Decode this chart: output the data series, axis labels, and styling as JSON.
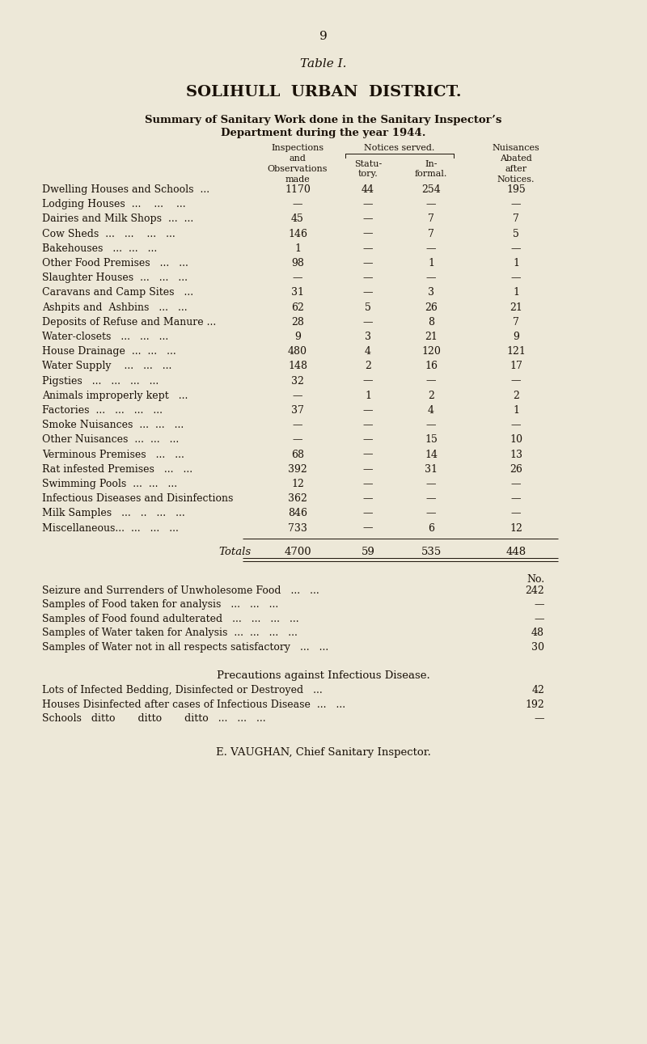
{
  "page_number": "9",
  "table_title": "Table I.",
  "subtitle1": "SOLIHULL  URBAN  DISTRICT.",
  "subtitle2": "Summary of Sanitary Work done in the Sanitary Inspector’s",
  "subtitle3": "Department during the year 1944.",
  "col_headers_group": "Notices served.",
  "col_h1": "Inspections",
  "col_h2": "and",
  "col_h3": "Observations",
  "col_h4": "made",
  "col_h5": "Statu-",
  "col_h6": "tory.",
  "col_h7": "In-",
  "col_h8": "formal.",
  "col_h9": "Nuisances",
  "col_h10": "Abated",
  "col_h11": "after",
  "col_h12": "Notices.",
  "table_rows": [
    [
      "Dwelling Houses and Schools  ...",
      "1170",
      "44",
      "254",
      "195"
    ],
    [
      "Lodging Houses  ...    ...    ...",
      "—",
      "—",
      "—",
      "—"
    ],
    [
      "Dairies and Milk Shops  ...  ...",
      "45",
      "—",
      "7",
      "7"
    ],
    [
      "Cow Sheds  ...   ...    ...   ...",
      "146",
      "—",
      "7",
      "5"
    ],
    [
      "Bakehouses   ...  ...   ...",
      "1",
      "—",
      "—",
      "—"
    ],
    [
      "Other Food Premises   ...   ...",
      "98",
      "—",
      "1",
      "1"
    ],
    [
      "Slaughter Houses  ...   ...   ...",
      "—",
      "—",
      "—",
      "—"
    ],
    [
      "Caravans and Camp Sites   ...",
      "31",
      "—",
      "3",
      "1"
    ],
    [
      "Ashpits and  Ashbins   ...   ...",
      "62",
      "5",
      "26",
      "21"
    ],
    [
      "Deposits of Refuse and Manure ...",
      "28",
      "—",
      "8",
      "7"
    ],
    [
      "Water-closets   ...   ...   ...",
      "9",
      "3",
      "21",
      "9"
    ],
    [
      "House Drainage  ...  ...   ...",
      "480",
      "4",
      "120",
      "121"
    ],
    [
      "Water Supply    ...   ...   ...",
      "148",
      "2",
      "16",
      "17"
    ],
    [
      "Pigsties   ...   ...   ...   ...",
      "32",
      "—",
      "—",
      "—"
    ],
    [
      "Animals improperly kept   ...",
      "—",
      "1",
      "2",
      "2"
    ],
    [
      "Factories  ...   ...   ...   ...",
      "37",
      "—",
      "4",
      "1"
    ],
    [
      "Smoke Nuisances  ...  ...   ...",
      "—",
      "—",
      "—",
      "—"
    ],
    [
      "Other Nuisances  ...  ...   ...",
      "—",
      "—",
      "15",
      "10"
    ],
    [
      "Verminous Premises   ...   ...",
      "68",
      "—",
      "14",
      "13"
    ],
    [
      "Rat infested Premises   ...   ...",
      "392",
      "—",
      "31",
      "26"
    ],
    [
      "Swimming Pools  ...  ...   ...",
      "12",
      "—",
      "—",
      "—"
    ],
    [
      "Infectious Diseases and Disinfections",
      "362",
      "—",
      "—",
      "—"
    ],
    [
      "Milk Samples   ...   ..   ...   ...",
      "846",
      "—",
      "—",
      "—"
    ],
    [
      "Miscellaneous...  ...   ...   ...",
      "733",
      "—",
      "6",
      "12"
    ]
  ],
  "totals_row": [
    "Totals",
    "4700",
    "59",
    "535",
    "448"
  ],
  "no_label": "No.",
  "extra_rows": [
    [
      "Seizure and Surrenders of Unwholesome Food   ...   ...",
      "242"
    ],
    [
      "Samples of Food taken for analysis   ...   ...   ...",
      "—"
    ],
    [
      "Samples of Food found adulterated   ...   ...   ...   ...",
      "—"
    ],
    [
      "Samples of Water taken for Analysis  ...  ...   ...   ...",
      "48"
    ],
    [
      "Samples of Water not in all respects satisfactory   ...   ...",
      "30"
    ]
  ],
  "precautions_title": "Precautions against Infectious Disease.",
  "precautions_rows": [
    [
      "Lots of Infected Bedding, Disinfected or Destroyed   ...",
      "42"
    ],
    [
      "Houses Disinfected after cases of Infectious Disease  ...   ...",
      "192"
    ],
    [
      "Schools   ditto       ditto       ditto   ...   ...   ...",
      "—"
    ]
  ],
  "footer": "E. VAUGHAN, Chief Sanitary Inspector.",
  "bg_color": "#ede8d8",
  "text_color": "#1a1108"
}
